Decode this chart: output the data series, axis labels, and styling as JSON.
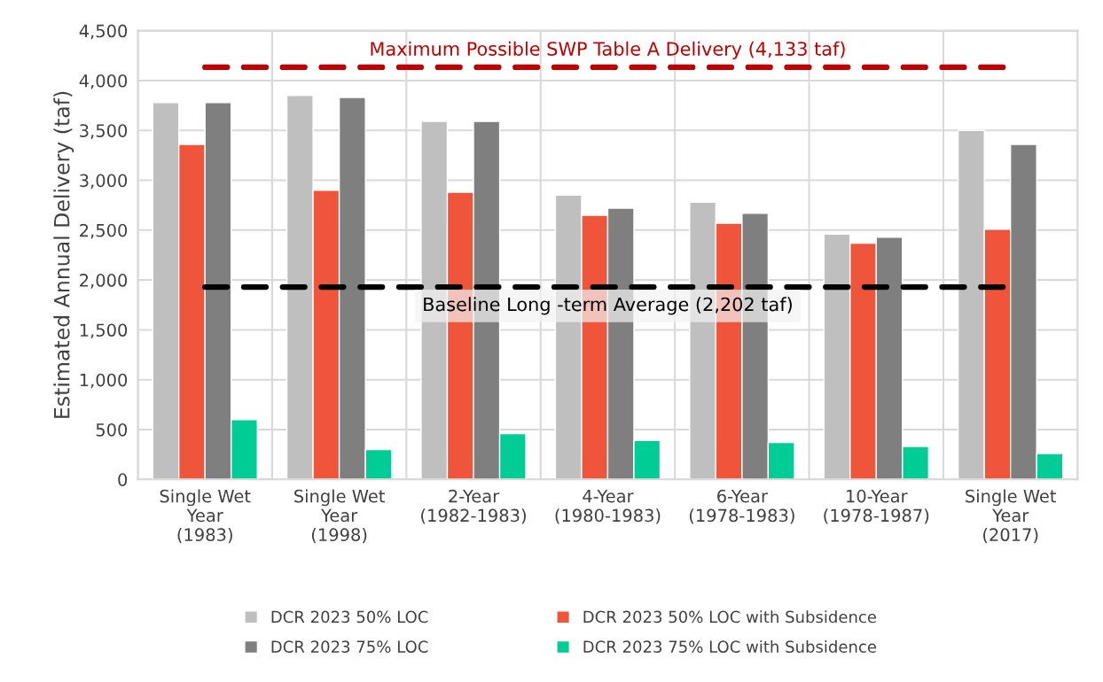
{
  "chart_data": {
    "type": "bar",
    "ylabel": "Estimated Annual Delivery (taf)",
    "categories": [
      "Single Wet\nYear\n(1983)",
      "Single Wet\nYear\n(1998)",
      "2-Year\n(1982-1983)",
      "4-Year\n(1980-1983)",
      "6-Year\n(1978-1983)",
      "10-Year\n(1978-1987)",
      "Single Wet\nYear\n(2017)"
    ],
    "series": [
      {
        "name": "DCR 2023 50% LOC",
        "color": "#bfbfbf",
        "values": [
          3780,
          3850,
          3590,
          2850,
          2780,
          2460,
          3500
        ]
      },
      {
        "name": "DCR 2023 50% LOC with Subsidence",
        "color": "#ee553b",
        "values": [
          3360,
          2900,
          2880,
          2650,
          2570,
          2370,
          2510
        ]
      },
      {
        "name": "DCR 2023 75% LOC",
        "color": "#7f7f7f",
        "values": [
          3780,
          3830,
          3590,
          2720,
          2670,
          2430,
          3360
        ]
      },
      {
        "name": "DCR 2023 75% LOC with Subsidence",
        "color": "#00cc96",
        "values": [
          600,
          300,
          460,
          390,
          370,
          330,
          260
        ]
      }
    ],
    "ylim": [
      0,
      4500
    ],
    "yticks": [
      {
        "value": 0,
        "label": "0"
      },
      {
        "value": 500,
        "label": "500"
      },
      {
        "value": 1000,
        "label": "1,000"
      },
      {
        "value": 1500,
        "label": "1,500"
      },
      {
        "value": 2000,
        "label": "2,000"
      },
      {
        "value": 2500,
        "label": "2,500"
      },
      {
        "value": 3000,
        "label": "3,000"
      },
      {
        "value": 3500,
        "label": "3,500"
      },
      {
        "value": 4000,
        "label": "4,000"
      },
      {
        "value": 4500,
        "label": "4,500"
      }
    ],
    "ref_lines": [
      {
        "axis": "y",
        "value": 4133,
        "label": "Maximum Possible SWP Table A Delivery (4,133 taf)",
        "color": "#c00000",
        "line_style": "dashed"
      },
      {
        "axis": "y",
        "value": 1930,
        "label": "Baseline Long -term Average (2,202 taf)",
        "color": "#000000",
        "line_style": "dashed"
      }
    ],
    "grid": true,
    "legend": "bottom"
  }
}
